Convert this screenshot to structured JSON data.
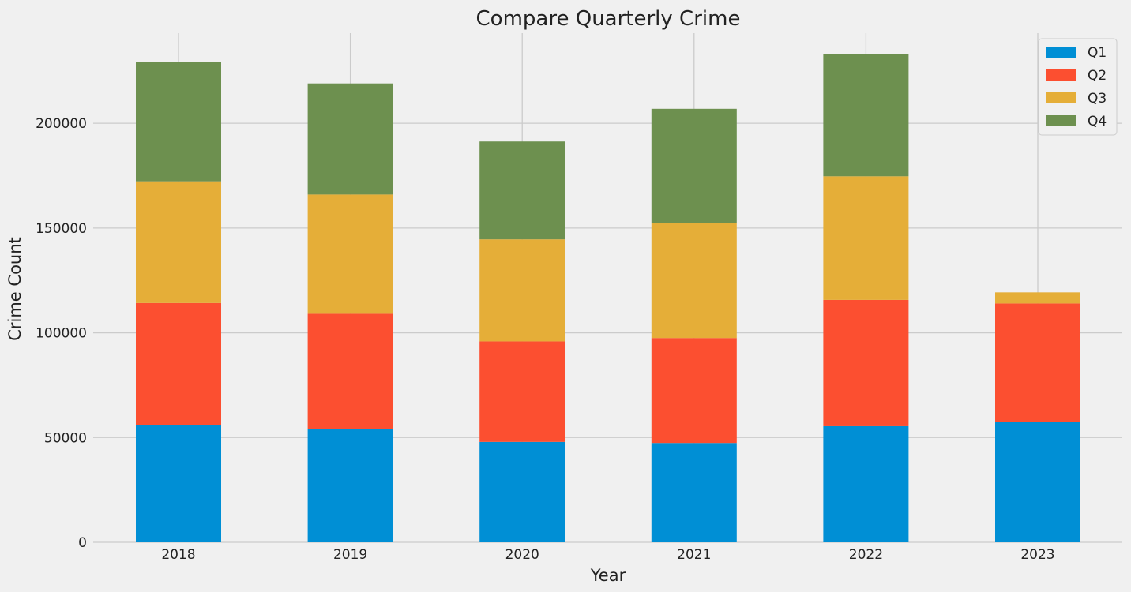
{
  "chart_data": {
    "type": "bar",
    "stacked": true,
    "title": "Compare Quarterly Crime",
    "xlabel": "Year",
    "ylabel": "Crime Count",
    "categories": [
      "2018",
      "2019",
      "2020",
      "2021",
      "2022",
      "2023"
    ],
    "series": [
      {
        "name": "Q1",
        "color": "#008fd5",
        "values": [
          55800,
          54000,
          47900,
          47400,
          55400,
          57600
        ]
      },
      {
        "name": "Q2",
        "color": "#fc4f30",
        "values": [
          58400,
          55100,
          48000,
          50100,
          60300,
          56400
        ]
      },
      {
        "name": "Q3",
        "color": "#e5ae38",
        "values": [
          58100,
          56900,
          48700,
          54900,
          59000,
          5300
        ]
      },
      {
        "name": "Q4",
        "color": "#6d904f",
        "values": [
          56800,
          53000,
          46700,
          54500,
          58500,
          0
        ]
      }
    ],
    "ylim": [
      0,
      243000
    ],
    "yticks": [
      0,
      50000,
      100000,
      150000,
      200000
    ],
    "ytick_labels": [
      "0",
      "50000",
      "100000",
      "150000",
      "200000"
    ],
    "grid": true,
    "legend_position": "top-right",
    "style": "fivethirtyeight"
  }
}
